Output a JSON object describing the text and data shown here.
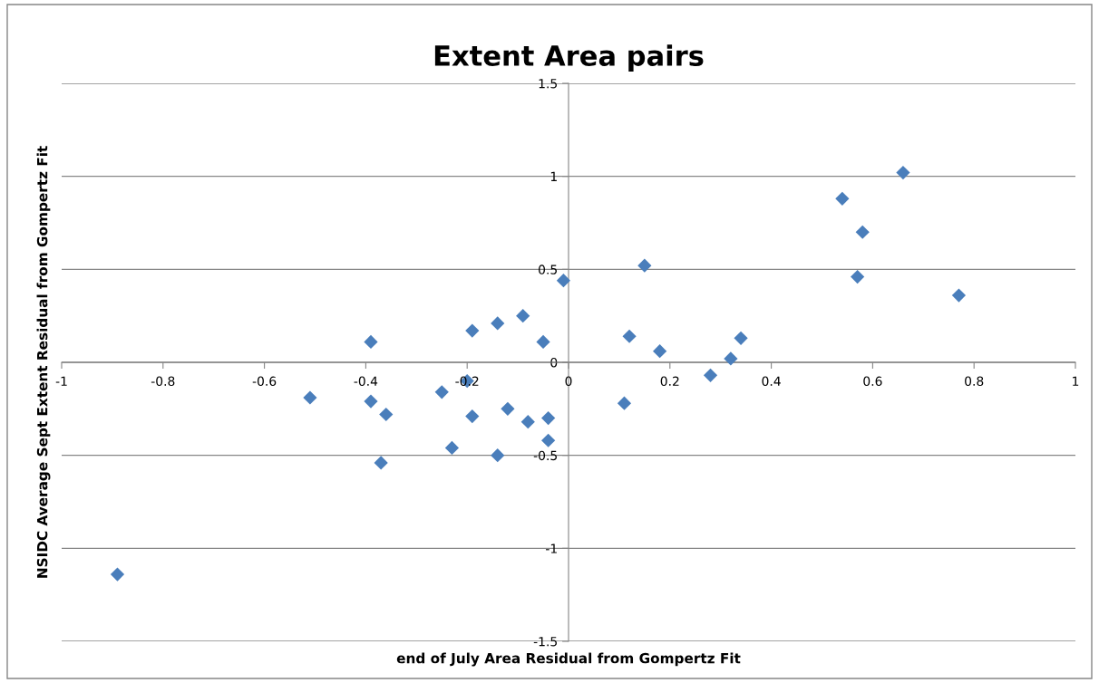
{
  "chart_data": {
    "type": "scatter",
    "title": "Extent Area pairs",
    "xlabel": "end of July Area Residual from Gompertz Fit",
    "ylabel": "NSIDC Average Sept Extent Residual from Gompertz Fit",
    "x": [
      -0.89,
      -0.51,
      -0.39,
      -0.39,
      -0.36,
      -0.37,
      -0.25,
      -0.23,
      -0.2,
      -0.19,
      -0.19,
      -0.14,
      -0.14,
      -0.12,
      -0.09,
      -0.08,
      -0.05,
      -0.04,
      -0.04,
      -0.01,
      0.11,
      0.12,
      0.15,
      0.18,
      0.28,
      0.32,
      0.34,
      0.54,
      0.57,
      0.58,
      0.66,
      0.77
    ],
    "series": [
      {
        "color": "#4a7ebb",
        "values": [
          -1.14,
          -0.19,
          -0.21,
          0.11,
          -0.28,
          -0.54,
          -0.16,
          -0.46,
          -0.1,
          -0.29,
          0.17,
          0.21,
          -0.5,
          -0.25,
          0.25,
          -0.32,
          0.11,
          -0.42,
          -0.3,
          0.44,
          -0.22,
          0.14,
          0.52,
          0.06,
          -0.07,
          0.02,
          0.13,
          0.88,
          0.46,
          0.7,
          1.02,
          0.36
        ]
      }
    ],
    "xlim": [
      -1,
      1
    ],
    "xticks": [
      -1,
      -0.8,
      -0.6,
      -0.4,
      -0.2,
      0,
      0.2,
      0.4,
      0.6,
      0.8,
      1
    ],
    "ylim": [
      -1.5,
      1.5
    ],
    "yticks": [
      -1.5,
      -1,
      -0.5,
      0,
      0.5,
      1,
      1.5
    ],
    "grid": "y",
    "marker": "diamond"
  }
}
